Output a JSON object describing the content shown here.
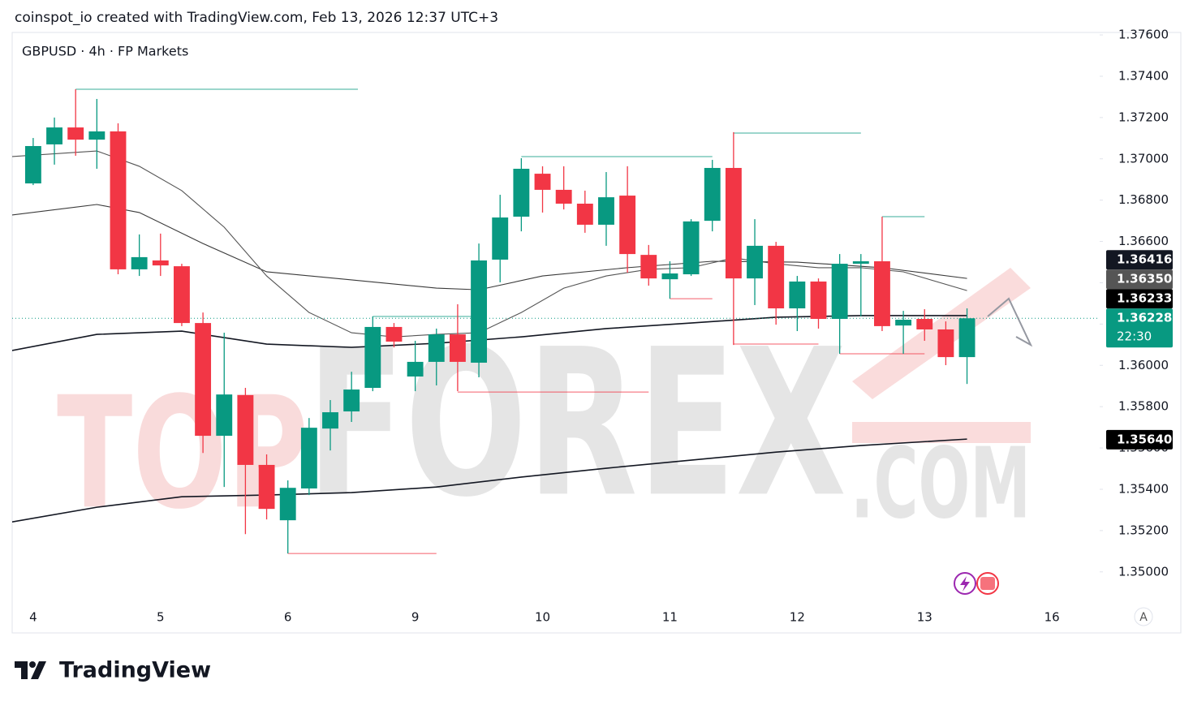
{
  "header": "coinspot_io created with TradingView.com, Feb 13, 2026 12:37 UTC+3",
  "footer": "TradingView",
  "chart_data": {
    "type": "candlestick",
    "title": "GBPUSD · 4h · FP Markets",
    "watermark": [
      "TOP",
      "FOREX",
      ".COM"
    ],
    "scale_button": "A",
    "up_color": "#089981",
    "down_color": "#f23645",
    "x": [
      0,
      1,
      2,
      3,
      4,
      5,
      6,
      7,
      8,
      9,
      10,
      11,
      12,
      13,
      14,
      15,
      16,
      17,
      18,
      19,
      20,
      21,
      22,
      23,
      24,
      25,
      26,
      27,
      28,
      29,
      30,
      31,
      32,
      33,
      34,
      35,
      36,
      37,
      38,
      39,
      40,
      41,
      42,
      43,
      44
    ],
    "open": [
      1.36881,
      1.3707,
      1.37152,
      1.37093,
      1.37133,
      1.36465,
      1.36508,
      1.3648,
      1.36205,
      1.35659,
      1.35856,
      1.35518,
      1.3525,
      1.35404,
      1.35694,
      1.35777,
      1.35891,
      1.36186,
      1.35946,
      1.36017,
      1.3615,
      1.36013,
      1.36512,
      1.3672,
      1.36928,
      1.3685,
      1.36783,
      1.36681,
      1.36822,
      1.36535,
      1.36417,
      1.36441,
      1.367,
      1.36956,
      1.36421,
      1.36579,
      1.36276,
      1.36406,
      1.36225,
      1.36492,
      1.36504,
      1.36193,
      1.36225,
      1.36174,
      1.3604
    ],
    "high": [
      1.37101,
      1.372,
      1.37337,
      1.3729,
      1.37172,
      1.36634,
      1.36638,
      1.36492,
      1.36256,
      1.36158,
      1.35891,
      1.35569,
      1.35443,
      1.35745,
      1.35832,
      1.35969,
      1.36237,
      1.36205,
      1.36119,
      1.36178,
      1.36296,
      1.3659,
      1.36826,
      1.37003,
      1.36964,
      1.36964,
      1.36846,
      1.36936,
      1.36964,
      1.36583,
      1.36504,
      1.36708,
      1.36995,
      1.37129,
      1.36708,
      1.36598,
      1.36433,
      1.36421,
      1.36539,
      1.36539,
      1.3672,
      1.36264,
      1.36272,
      1.36213,
      1.36276
    ],
    "low": [
      1.36873,
      1.36972,
      1.37015,
      1.36952,
      1.36441,
      1.36433,
      1.36433,
      1.3619,
      1.35576,
      1.35411,
      1.35183,
      1.35254,
      1.35089,
      1.35372,
      1.35588,
      1.35726,
      1.35875,
      1.36087,
      1.35875,
      1.35903,
      1.35875,
      1.35942,
      1.36402,
      1.36649,
      1.3674,
      1.36755,
      1.36642,
      1.36579,
      1.36449,
      1.36386,
      1.36323,
      1.36433,
      1.36649,
      1.36099,
      1.36292,
      1.36197,
      1.36166,
      1.36178,
      1.36056,
      1.36237,
      1.36166,
      1.36056,
      1.36119,
      1.36001,
      1.3591
    ],
    "close": [
      1.37062,
      1.37152,
      1.37093,
      1.37133,
      1.36465,
      1.36524,
      1.36484,
      1.36205,
      1.35659,
      1.35859,
      1.35518,
      1.35305,
      1.35407,
      1.35698,
      1.35773,
      1.35883,
      1.36186,
      1.36115,
      1.36017,
      1.3615,
      1.36017,
      1.36508,
      1.36716,
      1.36952,
      1.3685,
      1.36783,
      1.36681,
      1.36814,
      1.36539,
      1.36421,
      1.36445,
      1.36697,
      1.36956,
      1.36421,
      1.36579,
      1.36276,
      1.36406,
      1.36225,
      1.36492,
      1.36504,
      1.3619,
      1.36221,
      1.36174,
      1.3604,
      1.36228
    ],
    "lines": [
      {
        "color": "#131722",
        "x": [
          -1,
          3,
          7,
          11,
          15,
          19,
          23,
          27,
          31,
          35,
          39,
          44
        ],
        "values": [
          1.35242,
          1.35313,
          1.35364,
          1.35372,
          1.35384,
          1.35411,
          1.35459,
          1.35502,
          1.35541,
          1.3558,
          1.35612,
          1.35643
        ]
      },
      {
        "color": "#131722",
        "x": [
          -1,
          3,
          7,
          11,
          15,
          19,
          23,
          27,
          31,
          35,
          39,
          44
        ],
        "values": [
          1.36072,
          1.3615,
          1.36166,
          1.36103,
          1.36087,
          1.36107,
          1.36138,
          1.36178,
          1.36205,
          1.36233,
          1.36241,
          1.36241
        ]
      },
      {
        "color": "#3a3a3a",
        "x": [
          -1,
          3,
          5,
          8,
          11,
          15,
          19,
          21,
          24,
          28,
          32,
          36,
          40,
          44
        ],
        "values": [
          1.36728,
          1.36779,
          1.3674,
          1.3659,
          1.36453,
          1.36414,
          1.36374,
          1.36366,
          1.36433,
          1.36473,
          1.36504,
          1.365,
          1.36473,
          1.36421
        ]
      },
      {
        "color": "#555555",
        "x": [
          -1,
          3,
          5,
          7,
          9,
          11,
          13,
          15,
          17,
          19,
          21,
          23,
          25,
          27,
          29,
          31,
          33,
          35,
          37,
          39,
          41,
          44
        ],
        "values": [
          1.37011,
          1.37038,
          1.36964,
          1.36846,
          1.36669,
          1.36433,
          1.36256,
          1.36158,
          1.36138,
          1.3615,
          1.36158,
          1.36256,
          1.36374,
          1.36433,
          1.36465,
          1.36473,
          1.3652,
          1.36492,
          1.36473,
          1.36473,
          1.36453,
          1.36362
        ]
      }
    ],
    "levels": [
      {
        "value": 1.37337,
        "start": 2,
        "end": 15.3,
        "color": "#089981"
      },
      {
        "value": 1.37011,
        "start": 23,
        "end": 32,
        "color": "#089981"
      },
      {
        "value": 1.37125,
        "start": 33,
        "end": 39,
        "color": "#089981"
      },
      {
        "value": 1.3672,
        "start": 40,
        "end": 42,
        "color": "#089981"
      },
      {
        "value": 1.36237,
        "start": 16,
        "end": 21,
        "color": "#089981"
      },
      {
        "value": 1.35089,
        "start": 12,
        "end": 19,
        "color": "#f23645"
      },
      {
        "value": 1.35871,
        "start": 20,
        "end": 29,
        "color": "#f23645"
      },
      {
        "value": 1.36323,
        "start": 30,
        "end": 32,
        "color": "#f23645"
      },
      {
        "value": 1.36103,
        "start": 33,
        "end": 37,
        "color": "#f23645"
      },
      {
        "value": 1.36056,
        "start": 38,
        "end": 42,
        "color": "#f23645"
      }
    ],
    "price_labels": [
      {
        "value": 1.36416,
        "label": "1.36416",
        "color": "#131722"
      },
      {
        "value": 1.3635,
        "label": "1.36350",
        "color": "#555555"
      },
      {
        "value": 1.36233,
        "label": "1.36233",
        "color": "#000000"
      },
      {
        "value": 1.36228,
        "label": "1.36228",
        "sub": "22:30",
        "color": "#089981"
      },
      {
        "value": 1.3564,
        "label": "1.35640",
        "color": "#000000"
      }
    ],
    "xlim": [
      -0.99,
      50.25
    ],
    "xticks": [
      {
        "value": 0,
        "label": "4"
      },
      {
        "value": 6,
        "label": "5"
      },
      {
        "value": 12,
        "label": "6"
      },
      {
        "value": 18,
        "label": "9"
      },
      {
        "value": 24,
        "label": "10"
      },
      {
        "value": 30,
        "label": "11"
      },
      {
        "value": 36,
        "label": "12"
      },
      {
        "value": 42,
        "label": "13"
      },
      {
        "value": 48,
        "label": "16"
      }
    ],
    "ylim": [
      1.34842,
      1.37612
    ],
    "yticks": [
      {
        "value": 1.35,
        "label": "1.35000"
      },
      {
        "value": 1.352,
        "label": "1.35200"
      },
      {
        "value": 1.354,
        "label": "1.35400"
      },
      {
        "value": 1.356,
        "label": "1.35600"
      },
      {
        "value": 1.358,
        "label": "1.35800"
      },
      {
        "value": 1.36,
        "label": "1.36000"
      },
      {
        "value": 1.362,
        "label": "1.36200"
      },
      {
        "value": 1.364,
        "label": "1.36400"
      },
      {
        "value": 1.366,
        "label": "1.36600"
      },
      {
        "value": 1.368,
        "label": "1.36800"
      },
      {
        "value": 1.37,
        "label": "1.37000"
      },
      {
        "value": 1.372,
        "label": "1.37200"
      },
      {
        "value": 1.374,
        "label": "1.37400"
      },
      {
        "value": 1.376,
        "label": "1.37600"
      }
    ],
    "grid": false
  }
}
